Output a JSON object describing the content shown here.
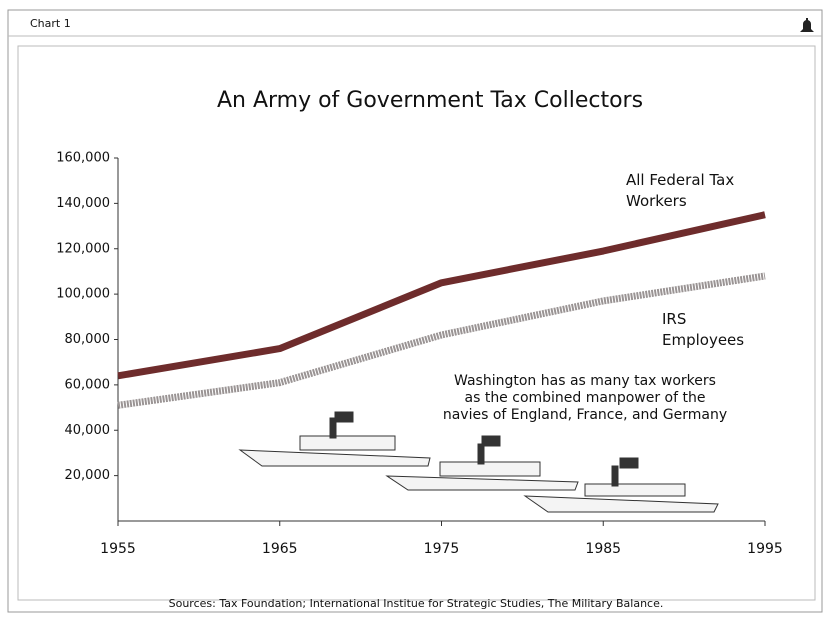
{
  "header": {
    "label": "Chart 1"
  },
  "chart_data": {
    "type": "line",
    "title": "An Army of Government Tax Collectors",
    "x": [
      1955,
      1965,
      1975,
      1985,
      1995
    ],
    "series": [
      {
        "name": "All Federal Tax Workers",
        "color": "#6e2c2c",
        "values": [
          64000,
          76000,
          105000,
          119000,
          135000
        ]
      },
      {
        "name": "IRS Employees",
        "color": "#9a9494",
        "values": [
          51000,
          61000,
          82000,
          97000,
          108000
        ]
      }
    ],
    "xlim": [
      1955,
      1995
    ],
    "xticks": [
      1955,
      1965,
      1975,
      1985,
      1995
    ],
    "ylim": [
      0,
      160000
    ],
    "yticks": [
      {
        "value": 20000,
        "label": "20,000"
      },
      {
        "value": 40000,
        "label": "40,000"
      },
      {
        "value": 60000,
        "label": "60,000"
      },
      {
        "value": 80000,
        "label": "80,000"
      },
      {
        "value": 100000,
        "label": "100,000"
      },
      {
        "value": 120000,
        "label": "120,000"
      },
      {
        "value": 140000,
        "label": "140,000"
      },
      {
        "value": 160000,
        "label": "160,000"
      }
    ],
    "grid": false,
    "annotation": [
      "Washington has as many tax workers",
      "as the combined manpower of the",
      "navies of England, France, and Germany"
    ],
    "source": "Sources: Tax Foundation; International Institue for Strategic Studies, The Military Balance."
  }
}
